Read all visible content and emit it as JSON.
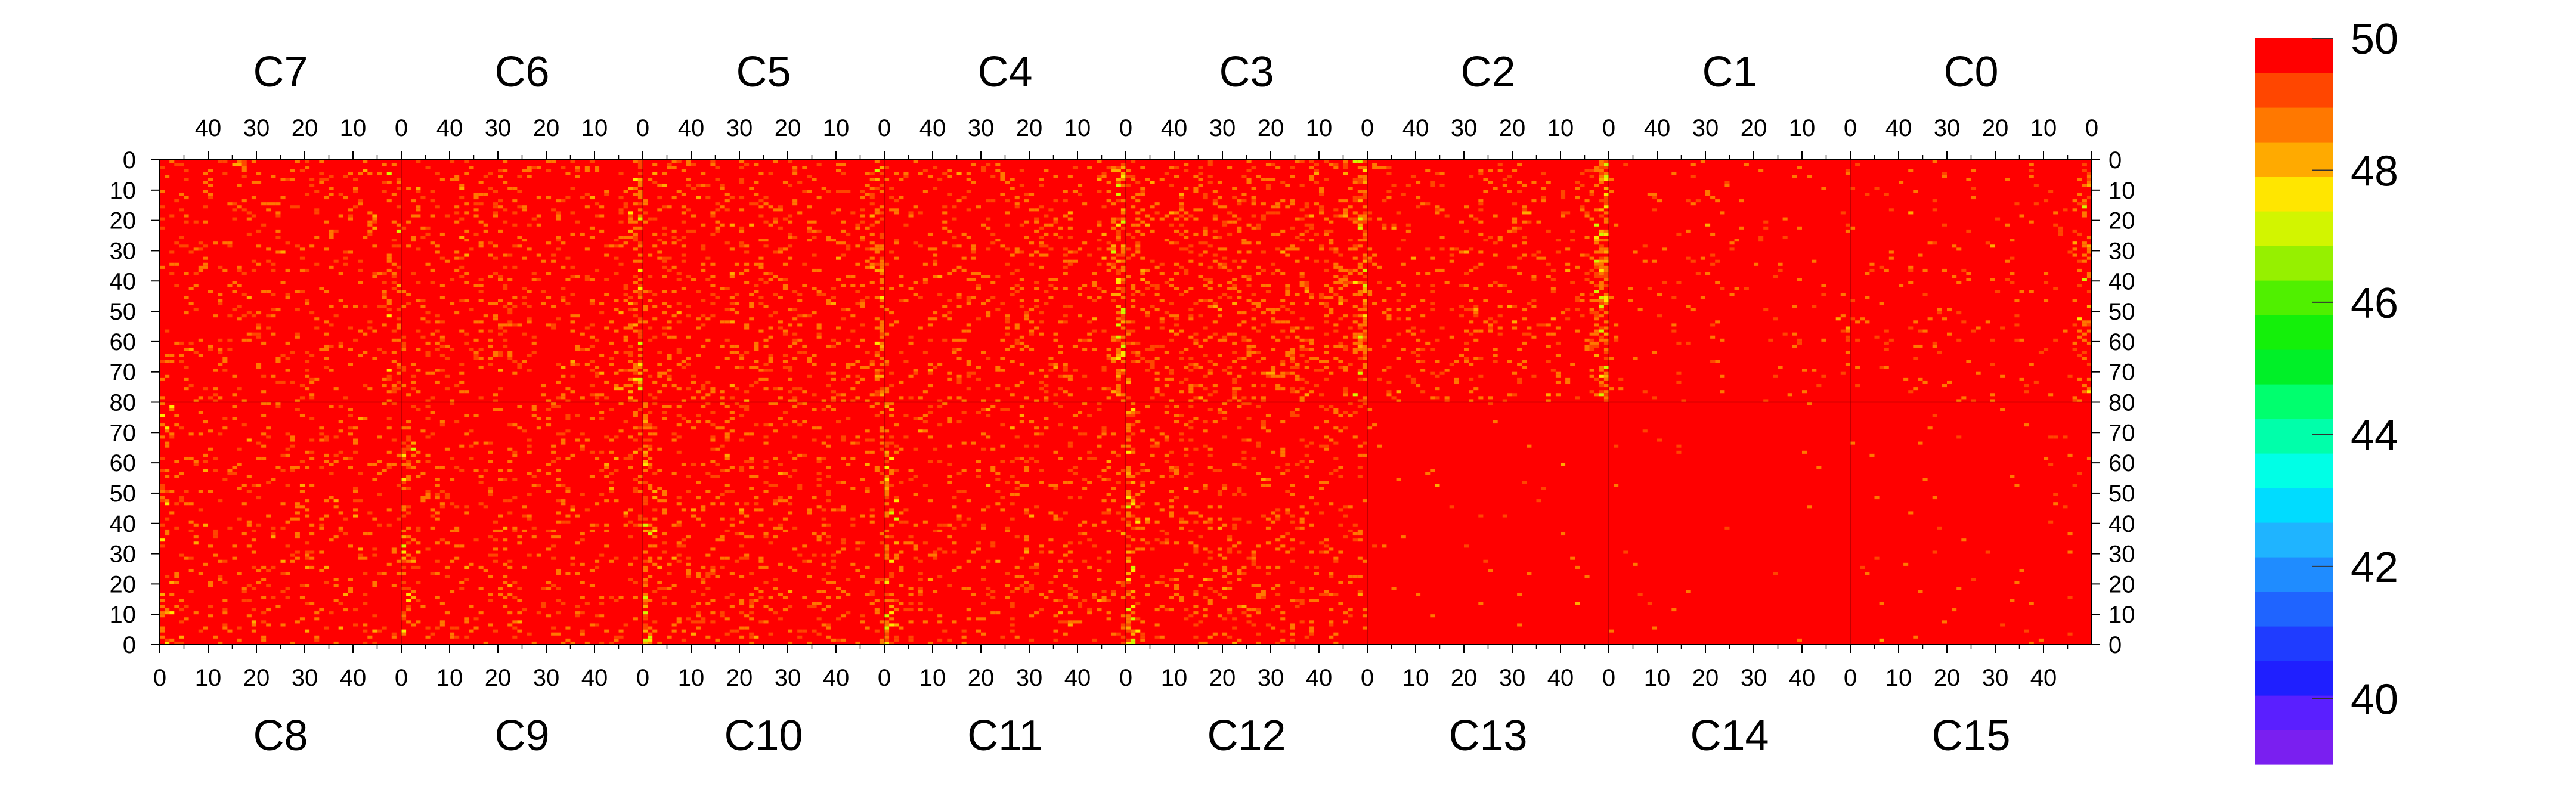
{
  "chart_data": {
    "type": "heatmap",
    "title": "",
    "xlabel": "",
    "ylabel": "",
    "top_chip_labels": [
      "C7",
      "C6",
      "C5",
      "C4",
      "C3",
      "C2",
      "C1",
      "C0"
    ],
    "bottom_chip_labels": [
      "C8",
      "C9",
      "C10",
      "C11",
      "C12",
      "C13",
      "C14",
      "C15"
    ],
    "x_range_per_chip": [
      0,
      50
    ],
    "top_x_tick_labels": [
      "40",
      "30",
      "20",
      "10",
      "0"
    ],
    "bottom_x_tick_labels": [
      "0",
      "10",
      "20",
      "30",
      "40"
    ],
    "top_x_tick_values": [
      40,
      30,
      20,
      10,
      0
    ],
    "bottom_x_tick_values": [
      0,
      10,
      20,
      30,
      40
    ],
    "y_range_per_half": [
      0,
      80
    ],
    "y_tick_labels_top_half": [
      "0",
      "10",
      "20",
      "30",
      "40",
      "50",
      "60",
      "70",
      "80"
    ],
    "y_tick_labels_bottom_half": [
      "70",
      "60",
      "50",
      "40",
      "30",
      "20",
      "10",
      "0"
    ],
    "y_tick_values_top_half": [
      0,
      10,
      20,
      30,
      40,
      50,
      60,
      70,
      80
    ],
    "y_tick_values_bottom_half": [
      70,
      60,
      50,
      40,
      30,
      20,
      10,
      0
    ],
    "colorbar": {
      "range": [
        39,
        50
      ],
      "tick_labels": [
        "50",
        "48",
        "46",
        "44",
        "42",
        "40"
      ],
      "tick_values": [
        50,
        48,
        46,
        44,
        42,
        40
      ],
      "levels": 20,
      "palette": [
        "#7a1ff0",
        "#5a1fff",
        "#1f1fff",
        "#1f3cff",
        "#1f64ff",
        "#1f8cff",
        "#1fb4ff",
        "#00dcff",
        "#00ffe6",
        "#00ffaa",
        "#00ff6e",
        "#00f028",
        "#14f00a",
        "#50f000",
        "#96f000",
        "#d2f500",
        "#ffe600",
        "#ffaa00",
        "#ff7800",
        "#ff4600",
        "#ff0000"
      ]
    },
    "value_summary": "Most pixels at 50 (red); column 0 edges of chips C6,C5,C4,C3,C2 (top) and C8,C9,C10,C11,C12 (bottom) show values 44-49; C13, C14, C15, C1 nearly uniform 50.",
    "chip_noise": {
      "C7": 0.1,
      "C6": 0.12,
      "C5": 0.14,
      "C4": 0.12,
      "C3": 0.18,
      "C2": 0.1,
      "C1": 0.03,
      "C0": 0.04,
      "C8": 0.1,
      "C9": 0.1,
      "C10": 0.12,
      "C11": 0.1,
      "C12": 0.12,
      "C13": 0.01,
      "C14": 0.005,
      "C15": 0.01
    },
    "chip_edge_intensity": {
      "C7": 0.25,
      "C6": 0.45,
      "C5": 0.4,
      "C4": 0.55,
      "C3": 0.55,
      "C2": 0.6,
      "C1": 0.05,
      "C0": 0.35,
      "C8": 0.3,
      "C9": 0.35,
      "C10": 0.35,
      "C11": 0.45,
      "C12": 0.45,
      "C13": 0.02,
      "C14": 0.02,
      "C15": 0.02
    }
  }
}
